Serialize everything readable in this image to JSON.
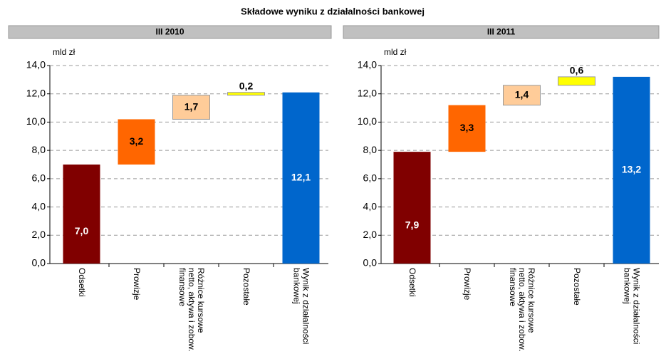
{
  "title": "Składowe wyniku z działalności bankowej",
  "chart_data": [
    {
      "type": "waterfall",
      "title": "III 2010",
      "y_label": "mld zł",
      "categories": [
        "Odsetki",
        "Prowizje",
        "Różnice kursowe netto, aktywa i zobow. finansowe",
        "Pozostałe",
        "Wynik z działalności bankowej"
      ],
      "values": [
        7.0,
        3.2,
        1.7,
        0.2,
        12.1
      ],
      "value_labels": [
        "7,0",
        "3,2",
        "1,7",
        "0,2",
        "12,1"
      ],
      "is_total": [
        false,
        false,
        false,
        false,
        true
      ],
      "colors": [
        "#800000",
        "#ff6600",
        "#ffcc99",
        "#ffff00",
        "#0066cc"
      ],
      "ylim": [
        0,
        14
      ],
      "yticks": [
        {
          "value": 0,
          "label": "0,0"
        },
        {
          "value": 2,
          "label": "2,0"
        },
        {
          "value": 4,
          "label": "4,0"
        },
        {
          "value": 6,
          "label": "6,0"
        },
        {
          "value": 8,
          "label": "8,0"
        },
        {
          "value": 10,
          "label": "10,0"
        },
        {
          "value": 12,
          "label": "12,0"
        },
        {
          "value": 14,
          "label": "14,0"
        }
      ],
      "grid": true
    },
    {
      "type": "waterfall",
      "title": "III 2011",
      "y_label": "mld zł",
      "categories": [
        "Odsetki",
        "Prowizje",
        "Różnice kursowe netto, aktywa i zobow. finansowe",
        "Pozostałe",
        "Wynik z działalności bankowej"
      ],
      "values": [
        7.9,
        3.3,
        1.4,
        0.6,
        13.2
      ],
      "value_labels": [
        "7,9",
        "3,3",
        "1,4",
        "0,6",
        "13,2"
      ],
      "is_total": [
        false,
        false,
        false,
        false,
        true
      ],
      "colors": [
        "#800000",
        "#ff6600",
        "#ffcc99",
        "#ffff00",
        "#0066cc"
      ],
      "ylim": [
        0,
        14
      ],
      "yticks": [
        {
          "value": 0,
          "label": "0,0"
        },
        {
          "value": 2,
          "label": "2,0"
        },
        {
          "value": 4,
          "label": "4,0"
        },
        {
          "value": 6,
          "label": "6,0"
        },
        {
          "value": 8,
          "label": "8,0"
        },
        {
          "value": 10,
          "label": "10,0"
        },
        {
          "value": 12,
          "label": "12,0"
        },
        {
          "value": 14,
          "label": "14,0"
        }
      ],
      "grid": true
    }
  ]
}
